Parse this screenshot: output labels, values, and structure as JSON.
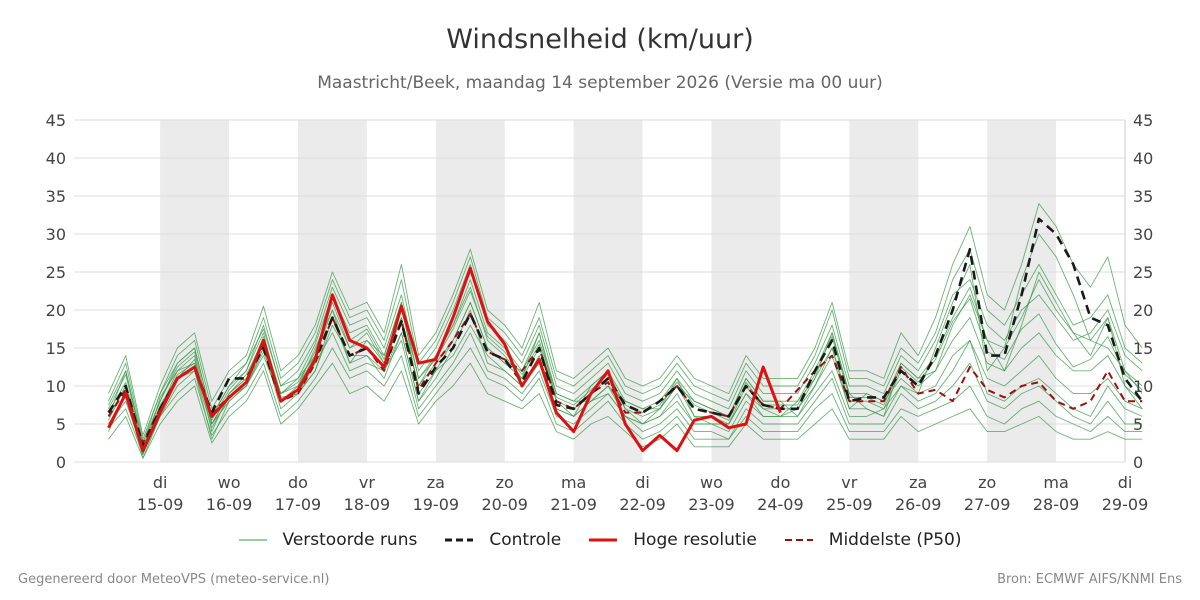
{
  "header": {
    "title": "Windsnelheid (km/uur)",
    "subtitle": "Maastricht/Beek, maandag 14 september 2026 (Versie ma 00 uur)"
  },
  "legend": {
    "perturbed": "Verstoorde runs",
    "control": "Controle",
    "high_res": "Hoge resolutie",
    "median": "Middelste (P50)"
  },
  "footer": {
    "left": "Gegenereerd door MeteoVPS (meteo-service.nl)",
    "right": "Bron: ECMWF AIFS/KNMI Ens"
  },
  "colors": {
    "perturbed": "#3a9a48",
    "control": "#1a1a1a",
    "high_res": "#dd1111",
    "median": "#991111",
    "weekend_band": "#ebebeb",
    "grid": "#dddddd"
  },
  "chart_data": {
    "type": "line",
    "title": "Windsnelheid (km/uur)",
    "ylim": [
      0,
      45
    ],
    "y_ticks": [
      0,
      5,
      10,
      15,
      20,
      25,
      30,
      35,
      40,
      45
    ],
    "xlim": [
      -1.25,
      14
    ],
    "x_unit": "days since 15-09-2026 00 UTC",
    "x_ticks": [
      {
        "x": 0,
        "day": "di",
        "date": "15-09"
      },
      {
        "x": 1,
        "day": "wo",
        "date": "16-09"
      },
      {
        "x": 2,
        "day": "do",
        "date": "17-09"
      },
      {
        "x": 3,
        "day": "vr",
        "date": "18-09"
      },
      {
        "x": 4,
        "day": "za",
        "date": "19-09"
      },
      {
        "x": 5,
        "day": "zo",
        "date": "20-09"
      },
      {
        "x": 6,
        "day": "ma",
        "date": "21-09"
      },
      {
        "x": 7,
        "day": "di",
        "date": "22-09"
      },
      {
        "x": 8,
        "day": "wo",
        "date": "23-09"
      },
      {
        "x": 9,
        "day": "do",
        "date": "24-09"
      },
      {
        "x": 10,
        "day": "vr",
        "date": "25-09"
      },
      {
        "x": 11,
        "day": "za",
        "date": "26-09"
      },
      {
        "x": 12,
        "day": "zo",
        "date": "27-09"
      },
      {
        "x": 13,
        "day": "ma",
        "date": "28-09"
      },
      {
        "x": 14,
        "day": "di",
        "date": "29-09"
      }
    ],
    "shaded_bands": [
      [
        0,
        1
      ],
      [
        2,
        3
      ],
      [
        4,
        5
      ],
      [
        6,
        7
      ],
      [
        8,
        9
      ],
      [
        10,
        11
      ],
      [
        12,
        13
      ]
    ],
    "grid": true,
    "legend_position": "bottom",
    "time_step": 0.25,
    "x_start": -0.75,
    "series": [
      {
        "name": "Controle",
        "role": "control",
        "style": "dashed",
        "values": [
          6.5,
          10,
          2,
          7,
          11,
          12.5,
          6.5,
          11,
          11,
          15,
          8,
          9.5,
          13.5,
          19,
          14,
          15,
          12.5,
          18.5,
          9,
          12.5,
          15,
          19.5,
          14.5,
          13.5,
          10.5,
          15,
          7.5,
          7,
          9,
          11,
          7.5,
          6.5,
          8,
          10,
          7,
          6.5,
          6,
          10,
          7.5,
          7,
          7,
          12,
          16,
          8,
          8.5,
          8.5,
          12,
          10,
          14,
          20,
          28,
          14,
          14,
          22,
          32,
          30,
          26,
          19,
          18,
          11,
          8
        ]
      },
      {
        "name": "Hoge resolutie",
        "role": "high_res",
        "style": "solid",
        "values": [
          4.5,
          9,
          1.5,
          6.5,
          11,
          12.5,
          6,
          8.5,
          10.5,
          16,
          8,
          9.5,
          13.5,
          22,
          16,
          15,
          12.5,
          20.5,
          13,
          13.5,
          19,
          25.5,
          18.5,
          15.5,
          10,
          13.5,
          6.5,
          4,
          9,
          12,
          5,
          1.5,
          3.5,
          1.5,
          5.5,
          6,
          4.5,
          5,
          12.5,
          6.5
        ]
      },
      {
        "name": "Middelste (P50)",
        "role": "median",
        "style": "dashed",
        "values": [
          6,
          9.5,
          2.5,
          7,
          11,
          12.5,
          6.5,
          8.5,
          10.5,
          15.5,
          8,
          9,
          13,
          19,
          14,
          15,
          12,
          18.5,
          9.5,
          13,
          16,
          19.5,
          14.5,
          13.5,
          12,
          15,
          8,
          7,
          9,
          10.5,
          6.5,
          6.5,
          8,
          10,
          7,
          6.5,
          6,
          10,
          7.5,
          7,
          9.5,
          12,
          14,
          8,
          8,
          8,
          12.5,
          9,
          9.5,
          8,
          12.5,
          9.5,
          8.5,
          10,
          10.5,
          8,
          7,
          8,
          12,
          8,
          8
        ]
      }
    ],
    "ensemble": [
      [
        5.5,
        10,
        1,
        8.5,
        12,
        14,
        4,
        9,
        11.5,
        16,
        9,
        11,
        14,
        21,
        15,
        17,
        13,
        19,
        10,
        14,
        18,
        23,
        16,
        14,
        11,
        17,
        8,
        6,
        10,
        12,
        7,
        5,
        7,
        11,
        6,
        5,
        5,
        9,
        7,
        6,
        8,
        11,
        17,
        9,
        7,
        6,
        13,
        11,
        12,
        18,
        22,
        16,
        12,
        18,
        25,
        21,
        17,
        14,
        19,
        10,
        7
      ],
      [
        7,
        11.5,
        2,
        7,
        12,
        13,
        5.5,
        9.5,
        12,
        17,
        8,
        10,
        15,
        20,
        13,
        16,
        14,
        21,
        9,
        12,
        16,
        21,
        15,
        13,
        12,
        16,
        9,
        8,
        8,
        10,
        8,
        7,
        7,
        10,
        8,
        7,
        6,
        11,
        8,
        8,
        6,
        10,
        15,
        7,
        9,
        8,
        11,
        9,
        15,
        21,
        26,
        12,
        15,
        24,
        30,
        27,
        22,
        16,
        15,
        12,
        9
      ],
      [
        4,
        9,
        0.5,
        6,
        10,
        12,
        3,
        8,
        10,
        14.5,
        8.5,
        9,
        12,
        18,
        14,
        14,
        11,
        17,
        8,
        12,
        14,
        18,
        14,
        12,
        10,
        13,
        7,
        6,
        8,
        9,
        6,
        5,
        6,
        8,
        5,
        5,
        4,
        8,
        6,
        6,
        6,
        9,
        12,
        6,
        6,
        7,
        10,
        8,
        9,
        12,
        16,
        9,
        8,
        10,
        11,
        9,
        7,
        6,
        10,
        7,
        6
      ],
      [
        6,
        12,
        2.5,
        9,
        13,
        15,
        6,
        10,
        12,
        18,
        10,
        12,
        16,
        23,
        18,
        19,
        15,
        22,
        12,
        15,
        20,
        26,
        18,
        16,
        13,
        18,
        10,
        9,
        11,
        13,
        9,
        8,
        9,
        12,
        9,
        8,
        7,
        12,
        9,
        9,
        9,
        13,
        18,
        10,
        10,
        9,
        14,
        12,
        16,
        22,
        24,
        18,
        16,
        20,
        22,
        19,
        16,
        17,
        20,
        14,
        12
      ],
      [
        5,
        8,
        1.5,
        7.5,
        11,
        13.5,
        5,
        8,
        10,
        15,
        7,
        9,
        13,
        17,
        12,
        13,
        12,
        16,
        7,
        10,
        13,
        17,
        12,
        11,
        9,
        12,
        6,
        5,
        7,
        9,
        6,
        4,
        5,
        7,
        4,
        4,
        3,
        7,
        5,
        5,
        5,
        8,
        11,
        5,
        5,
        5,
        9,
        7,
        8,
        10,
        13,
        8,
        7,
        9,
        10,
        8,
        6,
        5,
        8,
        5,
        5
      ],
      [
        8,
        13,
        3,
        9,
        14,
        16,
        7,
        11,
        13,
        19,
        11,
        13,
        17,
        24,
        19,
        20,
        16,
        24,
        13,
        16,
        21,
        27,
        19,
        17,
        14,
        19,
        11,
        10,
        12,
        14,
        10,
        9,
        10,
        13,
        10,
        9,
        8,
        13,
        10,
        10,
        10,
        14,
        20,
        11,
        11,
        10,
        15,
        13,
        17,
        24,
        28,
        20,
        18,
        22,
        26,
        22,
        18,
        19,
        22,
        15,
        13
      ],
      [
        4.5,
        7,
        1,
        6,
        9,
        11,
        3.5,
        7,
        9,
        13,
        6,
        8,
        11,
        15,
        11,
        12,
        10,
        14,
        6,
        9,
        12,
        15,
        11,
        10,
        8,
        11,
        5,
        4,
        6,
        8,
        5,
        3,
        4,
        6,
        3,
        3,
        3,
        6,
        4,
        4,
        4,
        7,
        9,
        4,
        4,
        4,
        7,
        6,
        7,
        8,
        10,
        6,
        5,
        7,
        8,
        6,
        5,
        4,
        6,
        4,
        4
      ],
      [
        6.5,
        10.5,
        2,
        8,
        12.5,
        14.5,
        5,
        9,
        11,
        16.5,
        9,
        10.5,
        14.5,
        21.5,
        16,
        17.5,
        13.5,
        20,
        11,
        13.5,
        17.5,
        22.5,
        16.5,
        14.5,
        11.5,
        15.5,
        8.5,
        7.5,
        9.5,
        11.5,
        7.5,
        6.5,
        7.5,
        10.5,
        7.5,
        6.5,
        5.5,
        10.5,
        7.5,
        7.5,
        7.5,
        11.5,
        16.5,
        8.5,
        8.5,
        7.5,
        12.5,
        10.5,
        13.5,
        18.5,
        21.5,
        14.5,
        13.5,
        17.5,
        19.5,
        15.5,
        12.5,
        13.5,
        16.5,
        11.5,
        9.5
      ],
      [
        5,
        9,
        1,
        7,
        11,
        12,
        4.5,
        8.5,
        10,
        14,
        8,
        9,
        12,
        19,
        13,
        14,
        12,
        17,
        8,
        11,
        15,
        20,
        13,
        12,
        10,
        14,
        7,
        6,
        8,
        10,
        6,
        5,
        6,
        9,
        5,
        5,
        5,
        9,
        6,
        6,
        7,
        10,
        14,
        7,
        7,
        6,
        10,
        9,
        10,
        14,
        16,
        11,
        10,
        12,
        14,
        11,
        9,
        9,
        11,
        8,
        7
      ],
      [
        7.5,
        12,
        2.5,
        8,
        13,
        15,
        6,
        10,
        13,
        17.5,
        10,
        11,
        15.5,
        22,
        17,
        18,
        14,
        21,
        11,
        14,
        18,
        24,
        17,
        15,
        12,
        17,
        9,
        8,
        10,
        12,
        8,
        7,
        8,
        11,
        8,
        7,
        6,
        11,
        8,
        8,
        8,
        12,
        17,
        9,
        9,
        8,
        13,
        11,
        14,
        19,
        23,
        16,
        15,
        19,
        24,
        20,
        17,
        16,
        19,
        12,
        10
      ],
      [
        6,
        10,
        1.5,
        7,
        11.5,
        13,
        5,
        9,
        11,
        15,
        9,
        10,
        14,
        20,
        15,
        16,
        13,
        19,
        10,
        13,
        16,
        21,
        15,
        13,
        11,
        15,
        8,
        7,
        9,
        11,
        7,
        6,
        7,
        10,
        6,
        6,
        5,
        10,
        7,
        7,
        7,
        11,
        15,
        8,
        8,
        7,
        12,
        10,
        12,
        16,
        19,
        13,
        12,
        15,
        17,
        14,
        12,
        12,
        14,
        10,
        8
      ],
      [
        3,
        6,
        0.5,
        5,
        8,
        10,
        2.5,
        6,
        8,
        12,
        5,
        7,
        10,
        13,
        9,
        10,
        8,
        12,
        5,
        8,
        10,
        13,
        9,
        8,
        7,
        9,
        4,
        3,
        5,
        6,
        4,
        2,
        3,
        5,
        2,
        2,
        2,
        5,
        3,
        3,
        3,
        5,
        7,
        3,
        3,
        3,
        6,
        4,
        5,
        6,
        7,
        4,
        4,
        5,
        6,
        4,
        3,
        3,
        4,
        3,
        3
      ],
      [
        9,
        14,
        3.5,
        10,
        15,
        17,
        8,
        12,
        14,
        20.5,
        12,
        14,
        18,
        25,
        20,
        21,
        17,
        26,
        14,
        17,
        22,
        28,
        20,
        18,
        15,
        21,
        12,
        11,
        13,
        15,
        11,
        10,
        11,
        14,
        11,
        10,
        9,
        14,
        11,
        11,
        11,
        15,
        21,
        12,
        12,
        11,
        17,
        14,
        19,
        26,
        31,
        22,
        20,
        26,
        34,
        31,
        26,
        23,
        27,
        18,
        15
      ]
    ]
  }
}
